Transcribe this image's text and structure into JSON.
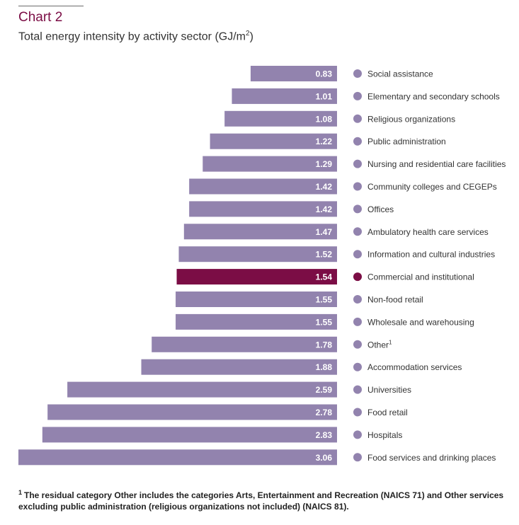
{
  "header": {
    "chart_label": "Chart 2",
    "title": "Total energy intensity by activity sector (GJ/m",
    "title_superscript": "2",
    "title_end": ")"
  },
  "footnote": {
    "mark": "1",
    "text": "The residual category Other includes the categories Arts, Entertainment and Recreation (NAICS 71) and Other services excluding public administration (religious organizations not included) (NAICS 81)."
  },
  "colors": {
    "bar": "#9283ae",
    "highlight": "#7b0d45",
    "value_text": "#ffffff",
    "label_text": "#333333"
  },
  "chart_data": {
    "type": "bar",
    "orientation": "horizontal",
    "title": "Total energy intensity by activity sector (GJ/m2)",
    "xlim": [
      0,
      3.06
    ],
    "data_labels": true,
    "legend_markers": true,
    "highlighted_category": "Commercial and institutional",
    "categories": [
      "Social assistance",
      "Elementary and secondary schools",
      "Religious organizations",
      "Public administration",
      "Nursing and residential care facilities",
      "Community colleges and CEGEPs",
      "Offices",
      "Ambulatory health care services",
      "Information and cultural industries",
      "Commercial and institutional",
      "Non-food retail",
      "Wholesale and warehousing",
      "Other",
      "Accommodation services",
      "Universities",
      "Food retail",
      "Hospitals",
      "Food services and drinking places"
    ],
    "category_superscripts": [
      "",
      "",
      "",
      "",
      "",
      "",
      "",
      "",
      "",
      "",
      "",
      "",
      "1",
      "",
      "",
      "",
      "",
      ""
    ],
    "values": [
      0.83,
      1.01,
      1.08,
      1.22,
      1.29,
      1.42,
      1.42,
      1.47,
      1.52,
      1.54,
      1.55,
      1.55,
      1.78,
      1.88,
      2.59,
      2.78,
      2.83,
      3.06
    ],
    "value_labels": [
      "0.83",
      "1.01",
      "1.08",
      "1.22",
      "1.29",
      "1.42",
      "1.42",
      "1.47",
      "1.52",
      "1.54",
      "1.55",
      "1.55",
      "1.78",
      "1.88",
      "2.59",
      "2.78",
      "2.83",
      "3.06"
    ]
  }
}
